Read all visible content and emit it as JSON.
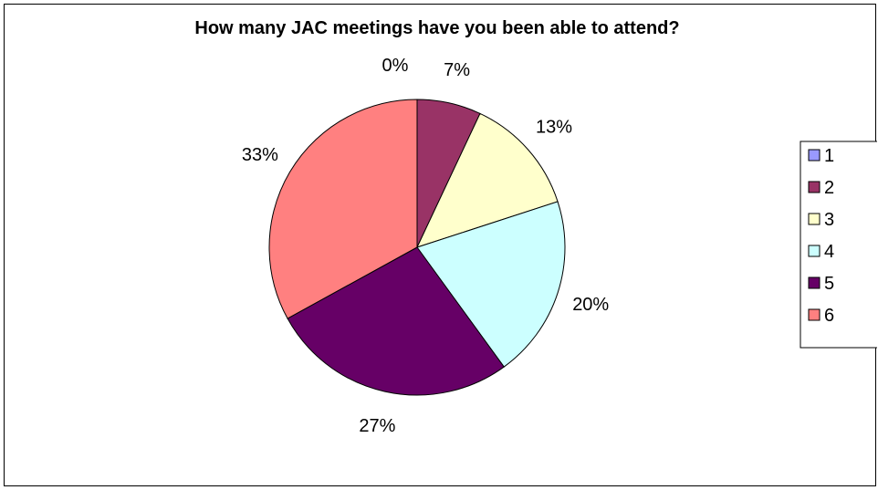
{
  "chart_data": {
    "type": "pie",
    "title": "How many JAC meetings have you been able to attend?",
    "categories": [
      "1",
      "2",
      "3",
      "4",
      "5",
      "6"
    ],
    "values": [
      0,
      7,
      13,
      20,
      27,
      33
    ],
    "data_labels": [
      "0%",
      "7%",
      "13%",
      "20%",
      "27%",
      "33%"
    ],
    "colors": [
      "#9999FF",
      "#993366",
      "#FFFFCC",
      "#CCFFFF",
      "#660066",
      "#FF8080"
    ],
    "start_angle_deg": 0,
    "direction": "clockwise",
    "legend_position": "right"
  }
}
